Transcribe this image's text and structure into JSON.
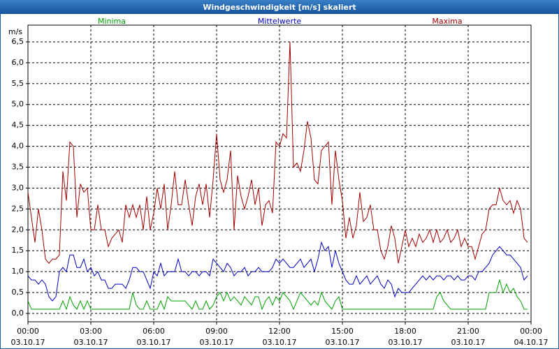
{
  "chart_data": {
    "type": "line",
    "title": "Windgeschwindigkeit [m/s] skaliert",
    "y_label": "m/s",
    "x": [
      "03.10.17 00:00",
      "03.10.17 00:10",
      "03.10.17 00:20",
      "03.10.17 00:30",
      "03.10.17 00:40",
      "03.10.17 00:50",
      "03.10.17 01:00",
      "03.10.17 01:10",
      "03.10.17 01:20",
      "03.10.17 01:30",
      "03.10.17 01:40",
      "03.10.17 01:50",
      "03.10.17 02:00",
      "03.10.17 02:10",
      "03.10.17 02:20",
      "03.10.17 02:30",
      "03.10.17 02:40",
      "03.10.17 02:50",
      "03.10.17 03:00",
      "03.10.17 03:10",
      "03.10.17 03:20",
      "03.10.17 03:30",
      "03.10.17 03:40",
      "03.10.17 03:50",
      "03.10.17 04:00",
      "03.10.17 04:10",
      "03.10.17 04:20",
      "03.10.17 04:30",
      "03.10.17 04:40",
      "03.10.17 04:50",
      "03.10.17 05:00",
      "03.10.17 05:10",
      "03.10.17 05:20",
      "03.10.17 05:30",
      "03.10.17 05:40",
      "03.10.17 05:50",
      "03.10.17 06:00",
      "03.10.17 06:10",
      "03.10.17 06:20",
      "03.10.17 06:30",
      "03.10.17 06:40",
      "03.10.17 06:50",
      "03.10.17 07:00",
      "03.10.17 07:10",
      "03.10.17 07:20",
      "03.10.17 07:30",
      "03.10.17 07:40",
      "03.10.17 07:50",
      "03.10.17 08:00",
      "03.10.17 08:10",
      "03.10.17 08:20",
      "03.10.17 08:30",
      "03.10.17 08:40",
      "03.10.17 08:50",
      "03.10.17 09:00",
      "03.10.17 09:10",
      "03.10.17 09:20",
      "03.10.17 09:30",
      "03.10.17 09:40",
      "03.10.17 09:50",
      "03.10.17 10:00",
      "03.10.17 10:10",
      "03.10.17 10:20",
      "03.10.17 10:30",
      "03.10.17 10:40",
      "03.10.17 10:50",
      "03.10.17 11:00",
      "03.10.17 11:10",
      "03.10.17 11:20",
      "03.10.17 11:30",
      "03.10.17 11:40",
      "03.10.17 11:50",
      "03.10.17 12:00",
      "03.10.17 12:10",
      "03.10.17 12:20",
      "03.10.17 12:30",
      "03.10.17 12:40",
      "03.10.17 12:50",
      "03.10.17 13:00",
      "03.10.17 13:10",
      "03.10.17 13:20",
      "03.10.17 13:30",
      "03.10.17 13:40",
      "03.10.17 13:50",
      "03.10.17 14:00",
      "03.10.17 14:10",
      "03.10.17 14:20",
      "03.10.17 14:30",
      "03.10.17 14:40",
      "03.10.17 14:50",
      "03.10.17 15:00",
      "03.10.17 15:10",
      "03.10.17 15:20",
      "03.10.17 15:30",
      "03.10.17 15:40",
      "03.10.17 15:50",
      "03.10.17 16:00",
      "03.10.17 16:10",
      "03.10.17 16:20",
      "03.10.17 16:30",
      "03.10.17 16:40",
      "03.10.17 16:50",
      "03.10.17 17:00",
      "03.10.17 17:10",
      "03.10.17 17:20",
      "03.10.17 17:30",
      "03.10.17 17:40",
      "03.10.17 17:50",
      "03.10.17 18:00",
      "03.10.17 18:10",
      "03.10.17 18:20",
      "03.10.17 18:30",
      "03.10.17 18:40",
      "03.10.17 18:50",
      "03.10.17 19:00",
      "03.10.17 19:10",
      "03.10.17 19:20",
      "03.10.17 19:30",
      "03.10.17 19:40",
      "03.10.17 19:50",
      "03.10.17 20:00",
      "03.10.17 20:10",
      "03.10.17 20:20",
      "03.10.17 20:30",
      "03.10.17 20:40",
      "03.10.17 20:50",
      "03.10.17 21:00",
      "03.10.17 21:10",
      "03.10.17 21:20",
      "03.10.17 21:30",
      "03.10.17 21:40",
      "03.10.17 21:50",
      "03.10.17 22:00",
      "03.10.17 22:10",
      "03.10.17 22:20",
      "03.10.17 22:30",
      "03.10.17 22:40",
      "03.10.17 22:50",
      "03.10.17 23:00",
      "03.10.17 23:10",
      "03.10.17 23:20",
      "03.10.17 23:30",
      "03.10.17 23:40",
      "03.10.17 23:50"
    ],
    "series": [
      {
        "name": "Minima",
        "color": "#00a000",
        "values": [
          0.3,
          0.1,
          0.1,
          0.1,
          0.1,
          0.1,
          0.1,
          0.1,
          0.1,
          0.1,
          0.3,
          0.1,
          0.4,
          0.2,
          0.1,
          0.3,
          0.1,
          0.3,
          0.1,
          0.1,
          0.1,
          0.1,
          0.1,
          0.1,
          0.1,
          0.1,
          0.1,
          0.1,
          0.1,
          0.1,
          0.5,
          0.2,
          0.1,
          0.1,
          0.3,
          0.1,
          0.1,
          0.1,
          0.3,
          0.1,
          0.4,
          0.3,
          0.3,
          0.3,
          0.3,
          0.3,
          0.2,
          0.1,
          0.3,
          0.1,
          0.1,
          0.3,
          0.1,
          0.2,
          0.4,
          0.5,
          0.3,
          0.5,
          0.3,
          0.4,
          0.3,
          0.2,
          0.4,
          0.3,
          0.2,
          0.4,
          0.4,
          0.1,
          0.3,
          0.4,
          0.2,
          0.4,
          0.3,
          0.5,
          0.4,
          0.3,
          0.1,
          0.3,
          0.5,
          0.4,
          0.3,
          0.2,
          0.3,
          0.2,
          0.5,
          0.3,
          0.2,
          0.1,
          0.3,
          0.4,
          0.1,
          0.1,
          0.1,
          0.1,
          0.1,
          0.1,
          0.1,
          0.1,
          0.1,
          0.1,
          0.1,
          0.1,
          0.1,
          0.1,
          0.1,
          0.1,
          0.1,
          0.1,
          0.1,
          0.1,
          0.1,
          0.1,
          0.1,
          0.1,
          0.1,
          0.1,
          0.1,
          0.4,
          0.5,
          0.3,
          0.2,
          0.1,
          0.1,
          0.1,
          0.1,
          0.1,
          0.1,
          0.1,
          0.1,
          0.1,
          0.1,
          0.1,
          0.5,
          0.5,
          0.5,
          0.8,
          0.5,
          0.7,
          0.5,
          0.6,
          0.4,
          0.3,
          0.1,
          0.1
        ]
      },
      {
        "name": "Mittelwerte",
        "color": "#0000c0",
        "values": [
          0.9,
          0.8,
          0.8,
          0.7,
          0.8,
          0.7,
          0.4,
          0.3,
          0.4,
          1.0,
          1.1,
          1.0,
          1.4,
          1.4,
          1.1,
          1.1,
          1.3,
          1.0,
          1.1,
          0.9,
          1.0,
          0.8,
          0.8,
          0.6,
          0.6,
          0.7,
          0.7,
          0.7,
          0.6,
          0.8,
          1.1,
          1.1,
          1.0,
          1.0,
          0.8,
          0.6,
          1.0,
          0.9,
          1.2,
          0.9,
          1.0,
          1.0,
          1.0,
          1.3,
          1.0,
          1.0,
          0.9,
          1.0,
          1.0,
          0.9,
          1.0,
          1.0,
          0.9,
          1.3,
          1.2,
          1.1,
          1.0,
          1.2,
          1.1,
          0.9,
          1.0,
          1.0,
          1.1,
          0.9,
          1.0,
          1.0,
          1.1,
          1.0,
          1.0,
          1.0,
          1.1,
          1.3,
          1.2,
          1.3,
          1.2,
          1.1,
          1.1,
          1.2,
          1.3,
          1.1,
          1.2,
          1.3,
          1.0,
          1.3,
          1.7,
          1.5,
          1.6,
          1.1,
          1.5,
          1.2,
          1.0,
          0.8,
          0.7,
          0.7,
          0.9,
          0.7,
          0.8,
          0.9,
          0.7,
          0.8,
          0.9,
          0.7,
          0.6,
          0.8,
          0.7,
          0.4,
          0.6,
          0.5,
          0.5,
          0.5,
          0.6,
          0.7,
          0.8,
          0.9,
          0.8,
          0.9,
          0.8,
          0.9,
          0.9,
          0.8,
          0.9,
          0.9,
          0.8,
          0.9,
          0.8,
          0.8,
          0.9,
          0.9,
          0.8,
          1.0,
          1.0,
          1.1,
          1.2,
          1.4,
          1.5,
          1.6,
          1.5,
          1.4,
          1.4,
          1.3,
          1.2,
          1.1,
          0.8,
          0.9
        ]
      },
      {
        "name": "Maxima",
        "color": "#a00000",
        "values": [
          2.9,
          2.3,
          1.7,
          2.5,
          2.0,
          1.3,
          1.2,
          1.3,
          1.3,
          1.4,
          3.4,
          2.7,
          4.1,
          4.0,
          2.3,
          3.1,
          2.9,
          3.0,
          2.0,
          2.0,
          2.6,
          2.0,
          2.0,
          1.6,
          1.8,
          1.9,
          2.0,
          1.7,
          2.6,
          2.3,
          2.6,
          2.3,
          2.6,
          2.0,
          2.8,
          2.0,
          2.4,
          3.0,
          2.5,
          3.1,
          2.0,
          2.6,
          3.4,
          2.6,
          2.6,
          3.2,
          2.6,
          2.1,
          2.8,
          3.1,
          2.6,
          3.1,
          2.3,
          3.2,
          4.3,
          3.2,
          2.9,
          3.2,
          3.9,
          2.0,
          3.3,
          2.8,
          2.5,
          2.8,
          3.2,
          2.6,
          3.0,
          2.1,
          2.6,
          2.7,
          2.4,
          4.1,
          4.0,
          4.3,
          4.2,
          6.5,
          3.5,
          3.6,
          3.4,
          3.9,
          4.6,
          4.2,
          3.2,
          3.1,
          3.9,
          4.0,
          4.1,
          2.6,
          3.9,
          3.2,
          2.7,
          1.8,
          2.3,
          1.8,
          2.1,
          2.9,
          2.2,
          2.3,
          2.6,
          2.0,
          2.0,
          1.5,
          1.3,
          1.6,
          2.1,
          1.8,
          1.2,
          1.6,
          2.0,
          1.6,
          1.8,
          1.6,
          1.9,
          1.7,
          1.8,
          2.0,
          1.7,
          2.0,
          1.7,
          1.8,
          2.0,
          1.7,
          1.8,
          2.0,
          1.6,
          1.8,
          1.6,
          1.6,
          1.3,
          1.6,
          1.9,
          2.0,
          2.5,
          2.6,
          2.6,
          3.0,
          2.7,
          2.6,
          2.7,
          2.4,
          2.7,
          2.5,
          1.8,
          1.7
        ]
      }
    ],
    "xlim": [
      "03.10.17 00:00",
      "04.10.17 00:00"
    ],
    "xticks": [
      {
        "value": "03.10.17 00:00",
        "label": [
          "00:00",
          "03.10.17"
        ]
      },
      {
        "value": "03.10.17 03:00",
        "label": [
          "03:00",
          "03.10.17"
        ]
      },
      {
        "value": "03.10.17 06:00",
        "label": [
          "06:00",
          "03.10.17"
        ]
      },
      {
        "value": "03.10.17 09:00",
        "label": [
          "09:00",
          "03.10.17"
        ]
      },
      {
        "value": "03.10.17 12:00",
        "label": [
          "12:00",
          "03.10.17"
        ]
      },
      {
        "value": "03.10.17 15:00",
        "label": [
          "15:00",
          "03.10.17"
        ]
      },
      {
        "value": "03.10.17 18:00",
        "label": [
          "18:00",
          "03.10.17"
        ]
      },
      {
        "value": "03.10.17 21:00",
        "label": [
          "21:00",
          "03.10.17"
        ]
      },
      {
        "value": "04.10.17 00:00",
        "label": [
          "00:00",
          "04.10.17"
        ]
      }
    ],
    "ylim": [
      -0.2,
      6.9
    ],
    "yticks": [
      {
        "value": 0,
        "label": "0,0"
      },
      {
        "value": 0.5,
        "label": "0,5"
      },
      {
        "value": 1,
        "label": "1,0"
      },
      {
        "value": 1.5,
        "label": "1,5"
      },
      {
        "value": 2,
        "label": "2,0"
      },
      {
        "value": 2.5,
        "label": "2,5"
      },
      {
        "value": 3,
        "label": "3,0"
      },
      {
        "value": 3.5,
        "label": "3,5"
      },
      {
        "value": 4,
        "label": "4,0"
      },
      {
        "value": 4.5,
        "label": "4,5"
      },
      {
        "value": 5,
        "label": "5,0"
      },
      {
        "value": 5.5,
        "label": "5,5"
      },
      {
        "value": 6,
        "label": "6,0"
      },
      {
        "value": 6.5,
        "label": "6,5"
      }
    ],
    "grid": true
  }
}
